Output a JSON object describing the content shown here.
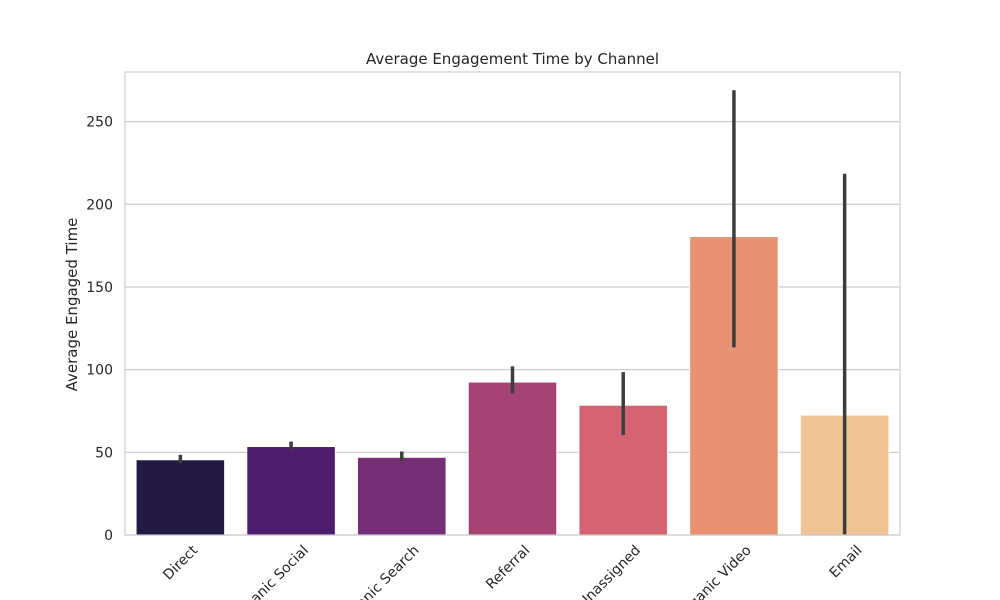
{
  "chart_data": {
    "type": "bar",
    "title": "Average Engagement Time by Channel",
    "xlabel": "",
    "ylabel": "Average Engaged Time",
    "categories": [
      "Direct",
      "Organic Social",
      "Organic Search",
      "Referral",
      "Unassigned",
      "Organic Video",
      "Email"
    ],
    "values": [
      45.5,
      53.5,
      47,
      92.5,
      78.5,
      180.5,
      72.5
    ],
    "error_low": [
      43.5,
      51.5,
      45,
      85.5,
      60.5,
      113.5,
      0
    ],
    "error_high": [
      48.5,
      56.5,
      50.5,
      102,
      98.5,
      269,
      218.5
    ],
    "colors": [
      "#221a45",
      "#4f1d6e",
      "#762f77",
      "#a54374",
      "#d46471",
      "#e89274",
      "#f0c494"
    ],
    "ylim": [
      0,
      280
    ],
    "yticks": [
      0,
      50,
      100,
      150,
      200,
      250
    ],
    "grid": true,
    "legend": "none"
  }
}
